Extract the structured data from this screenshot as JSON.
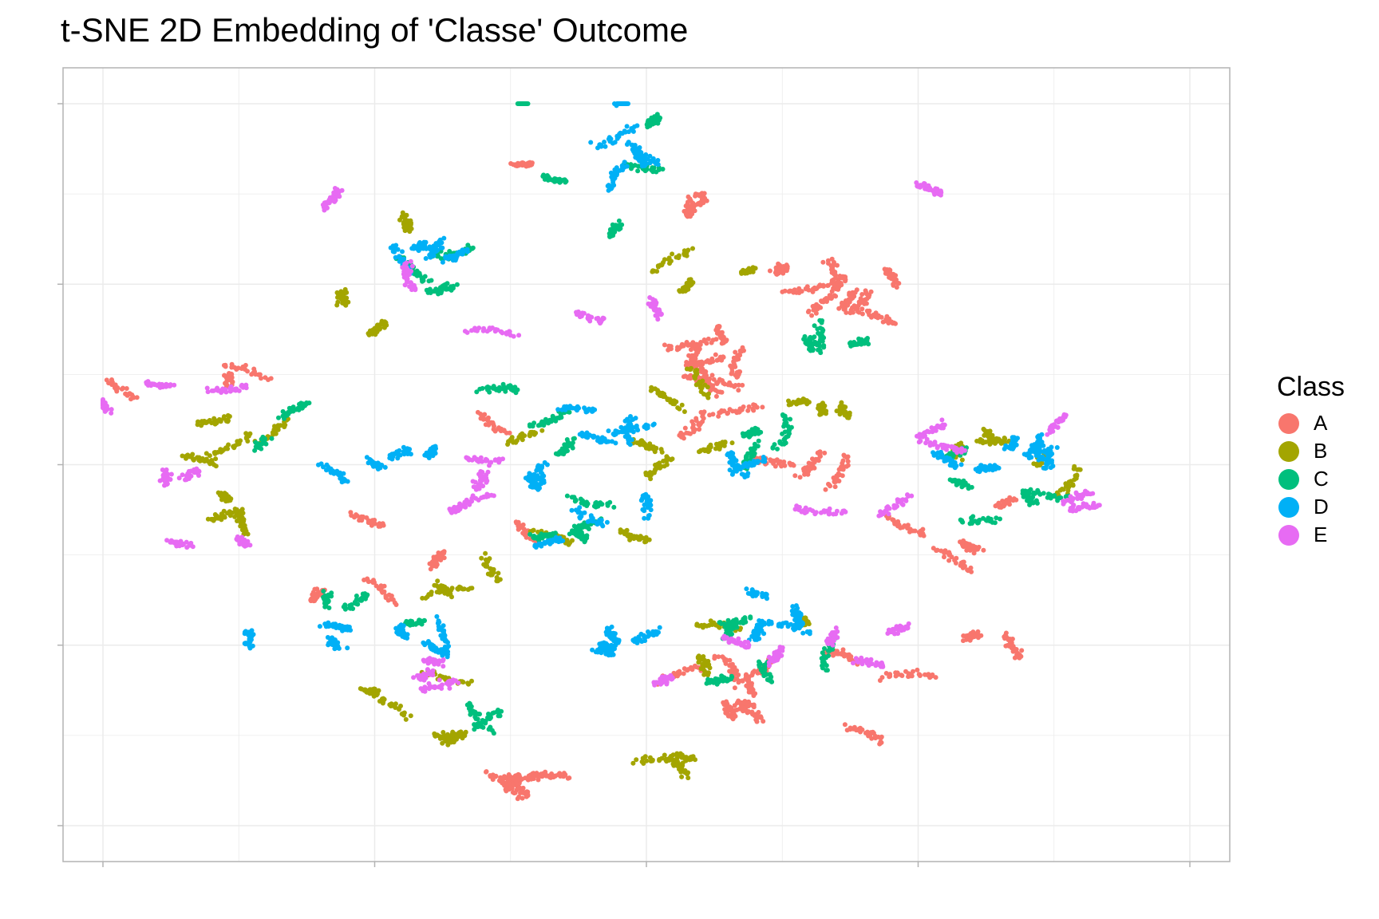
{
  "chart_data": {
    "type": "scatter",
    "title": "t-SNE 2D Embedding of 'Classe' Outcome",
    "xlabel": "",
    "ylabel": "",
    "xlim": [
      -80,
      80
    ],
    "ylim": [
      -80,
      80
    ],
    "grid": true,
    "axis_tick_labels": false,
    "legend": {
      "title": "Class",
      "position": "right"
    },
    "series": [
      {
        "name": "A",
        "color": "#F8766D",
        "clusters": [
          {
            "x": 30,
            "y": 38,
            "sx": 6,
            "sy": 3,
            "n": 260
          },
          {
            "x": 10,
            "y": 22,
            "sx": 2.5,
            "sy": 3,
            "n": 220
          },
          {
            "x": -18,
            "y": -68,
            "sx": 2.5,
            "sy": 2.5,
            "n": 180
          },
          {
            "x": 6,
            "y": 56,
            "sx": 2,
            "sy": 3,
            "n": 60
          },
          {
            "x": -20,
            "y": 68,
            "sx": 2,
            "sy": 1,
            "n": 40
          },
          {
            "x": 22,
            "y": 0,
            "sx": 3,
            "sy": 2,
            "n": 60
          },
          {
            "x": 12,
            "y": -48,
            "sx": 10,
            "sy": 8,
            "n": 200
          },
          {
            "x": 52,
            "y": -40,
            "sx": 12,
            "sy": 12,
            "n": 160
          },
          {
            "x": -65,
            "y": 14,
            "sx": 8,
            "sy": 6,
            "n": 80
          },
          {
            "x": -40,
            "y": -20,
            "sx": 20,
            "sy": 12,
            "n": 140
          },
          {
            "x": 45,
            "y": -5,
            "sx": 10,
            "sy": 10,
            "n": 120
          },
          {
            "x": -5,
            "y": 0,
            "sx": 18,
            "sy": 15,
            "n": 120
          },
          {
            "x": 60,
            "y": -20,
            "sx": 10,
            "sy": 5,
            "n": 40
          }
        ]
      },
      {
        "name": "B",
        "color": "#A3A500",
        "clusters": [
          {
            "x": -62,
            "y": 5,
            "sx": 6,
            "sy": 5,
            "n": 120
          },
          {
            "x": -62,
            "y": -12,
            "sx": 8,
            "sy": 4,
            "n": 90
          },
          {
            "x": -45,
            "y": 35,
            "sx": 6,
            "sy": 8,
            "n": 100
          },
          {
            "x": -38,
            "y": -50,
            "sx": 7,
            "sy": 4,
            "n": 80
          },
          {
            "x": 2,
            "y": -65,
            "sx": 3,
            "sy": 3,
            "n": 80
          },
          {
            "x": -30,
            "y": -58,
            "sx": 3,
            "sy": 3,
            "n": 60
          },
          {
            "x": 15,
            "y": 10,
            "sx": 10,
            "sy": 8,
            "n": 140
          },
          {
            "x": 55,
            "y": -5,
            "sx": 8,
            "sy": 8,
            "n": 140
          },
          {
            "x": -5,
            "y": -10,
            "sx": 14,
            "sy": 10,
            "n": 180
          },
          {
            "x": -28,
            "y": -25,
            "sx": 10,
            "sy": 5,
            "n": 80
          },
          {
            "x": 0,
            "y": 40,
            "sx": 8,
            "sy": 6,
            "n": 80
          },
          {
            "x": 8,
            "y": -40,
            "sx": 8,
            "sy": 6,
            "n": 100
          }
        ]
      },
      {
        "name": "C",
        "color": "#00BF7D",
        "clusters": [
          {
            "x": -5,
            "y": 65,
            "sx": 8,
            "sy": 8,
            "n": 150
          },
          {
            "x": -28,
            "y": 45,
            "sx": 8,
            "sy": 6,
            "n": 100
          },
          {
            "x": -28,
            "y": -58,
            "sx": 3,
            "sy": 3,
            "n": 60
          },
          {
            "x": -10,
            "y": -15,
            "sx": 6,
            "sy": 5,
            "n": 120
          },
          {
            "x": 20,
            "y": 10,
            "sx": 5,
            "sy": 6,
            "n": 100
          },
          {
            "x": 28,
            "y": 30,
            "sx": 4,
            "sy": 3,
            "n": 80
          },
          {
            "x": 15,
            "y": -40,
            "sx": 10,
            "sy": 8,
            "n": 160
          },
          {
            "x": 57,
            "y": -5,
            "sx": 8,
            "sy": 8,
            "n": 140
          },
          {
            "x": -15,
            "y": 10,
            "sx": 10,
            "sy": 5,
            "n": 100
          },
          {
            "x": -40,
            "y": -40,
            "sx": 10,
            "sy": 6,
            "n": 80
          },
          {
            "x": -55,
            "y": 10,
            "sx": 8,
            "sy": 5,
            "n": 60
          }
        ]
      },
      {
        "name": "D",
        "color": "#00B0F6",
        "clusters": [
          {
            "x": -2,
            "y": 68,
            "sx": 6,
            "sy": 8,
            "n": 150
          },
          {
            "x": -30,
            "y": 45,
            "sx": 6,
            "sy": 6,
            "n": 120
          },
          {
            "x": -40,
            "y": 0,
            "sx": 6,
            "sy": 5,
            "n": 120
          },
          {
            "x": -38,
            "y": -40,
            "sx": 10,
            "sy": 4,
            "n": 180
          },
          {
            "x": -10,
            "y": 5,
            "sx": 8,
            "sy": 6,
            "n": 180
          },
          {
            "x": 0,
            "y": -38,
            "sx": 8,
            "sy": 4,
            "n": 120
          },
          {
            "x": 18,
            "y": 0,
            "sx": 3,
            "sy": 2,
            "n": 60
          },
          {
            "x": 20,
            "y": -35,
            "sx": 6,
            "sy": 6,
            "n": 120
          },
          {
            "x": 48,
            "y": 5,
            "sx": 6,
            "sy": 5,
            "n": 120
          },
          {
            "x": 58,
            "y": 5,
            "sx": 5,
            "sy": 5,
            "n": 60
          },
          {
            "x": -5,
            "y": -15,
            "sx": 6,
            "sy": 6,
            "n": 80
          }
        ]
      },
      {
        "name": "E",
        "color": "#E76BF3",
        "clusters": [
          {
            "x": -28,
            "y": -5,
            "sx": 4,
            "sy": 4,
            "n": 120
          },
          {
            "x": -30,
            "y": -45,
            "sx": 4,
            "sy": 3,
            "n": 80
          },
          {
            "x": -68,
            "y": 15,
            "sx": 6,
            "sy": 3,
            "n": 90
          },
          {
            "x": -72,
            "y": 0,
            "sx": 4,
            "sy": 3,
            "n": 60
          },
          {
            "x": -65,
            "y": -18,
            "sx": 6,
            "sy": 2,
            "n": 60
          },
          {
            "x": 35,
            "y": -42,
            "sx": 4,
            "sy": 6,
            "n": 80
          },
          {
            "x": 68,
            "y": -8,
            "sx": 5,
            "sy": 2,
            "n": 60
          },
          {
            "x": 42,
            "y": 61,
            "sx": 2,
            "sy": 1,
            "n": 40
          },
          {
            "x": -48,
            "y": 58,
            "sx": 3,
            "sy": 1,
            "n": 40
          },
          {
            "x": 8,
            "y": -45,
            "sx": 8,
            "sy": 5,
            "n": 100
          },
          {
            "x": 25,
            "y": -8,
            "sx": 8,
            "sy": 4,
            "n": 60
          },
          {
            "x": 55,
            "y": 10,
            "sx": 8,
            "sy": 8,
            "n": 80
          },
          {
            "x": -10,
            "y": 30,
            "sx": 15,
            "sy": 10,
            "n": 80
          },
          {
            "x": -45,
            "y": 35,
            "sx": 5,
            "sy": 5,
            "n": 40
          }
        ]
      }
    ]
  }
}
